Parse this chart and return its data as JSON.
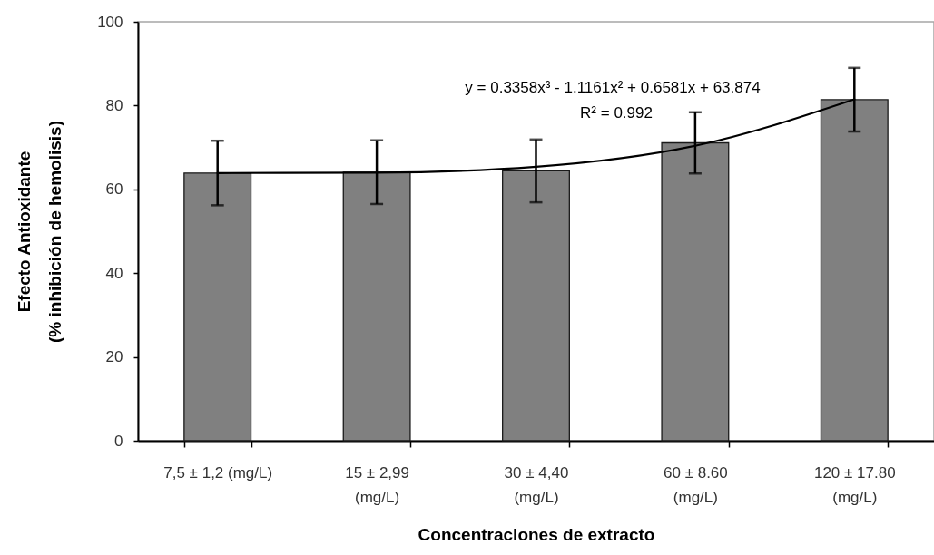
{
  "chart_data": {
    "type": "bar",
    "categories": [
      "7,5 ± 1,2 (mg/L)",
      "15 ± 2,99\n(mg/L)",
      "30 ± 4,40\n(mg/L)",
      "60 ± 8.60\n(mg/L)",
      "120 ± 17.80\n(mg/L)"
    ],
    "series": [
      {
        "color": "#808080",
        "values": [
          63.9,
          64.1,
          64.4,
          71.1,
          81.4
        ],
        "errors": [
          7.7,
          7.6,
          7.5,
          7.3,
          7.6
        ]
      },
      {
        "type": "line",
        "color": "#000000",
        "values": [
          63.9,
          64.0,
          65.4,
          70.4,
          81.5
        ]
      }
    ],
    "xlabel": "Concentraciones de extracto",
    "ylabel": "Efecto Antioxidante\n(% inhibición de hemolisis)",
    "ylim": [
      0,
      100
    ],
    "yticks": [
      0,
      20,
      40,
      60,
      80,
      100
    ],
    "annotations": [
      "y = 0.3358x³ - 1.1161x² + 0.6581x + 63.874",
      "R² = 0.992"
    ]
  }
}
